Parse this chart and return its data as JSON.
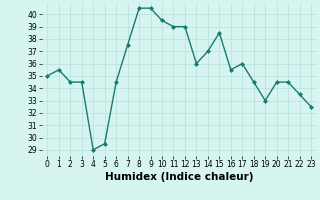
{
  "x": [
    0,
    1,
    2,
    3,
    4,
    5,
    6,
    7,
    8,
    9,
    10,
    11,
    12,
    13,
    14,
    15,
    16,
    17,
    18,
    19,
    20,
    21,
    22,
    23
  ],
  "y": [
    35.0,
    35.5,
    34.5,
    34.5,
    29.0,
    29.5,
    34.5,
    37.5,
    40.5,
    40.5,
    39.5,
    39.0,
    39.0,
    36.0,
    37.0,
    38.5,
    35.5,
    36.0,
    34.5,
    33.0,
    34.5,
    34.5,
    33.5,
    32.5
  ],
  "line_color": "#1a7a6e",
  "marker": "D",
  "marker_size": 2,
  "line_width": 1.0,
  "bg_color": "#d6f5f0",
  "grid_color": "#b8e0db",
  "xlabel": "Humidex (Indice chaleur)",
  "xlim": [
    -0.5,
    23.5
  ],
  "ylim": [
    28.5,
    41.0
  ],
  "yticks": [
    29,
    30,
    31,
    32,
    33,
    34,
    35,
    36,
    37,
    38,
    39,
    40
  ],
  "xticks": [
    0,
    1,
    2,
    3,
    4,
    5,
    6,
    7,
    8,
    9,
    10,
    11,
    12,
    13,
    14,
    15,
    16,
    17,
    18,
    19,
    20,
    21,
    22,
    23
  ],
  "tick_label_size": 5.5,
  "xlabel_size": 7.5,
  "xlabel_weight": "bold"
}
